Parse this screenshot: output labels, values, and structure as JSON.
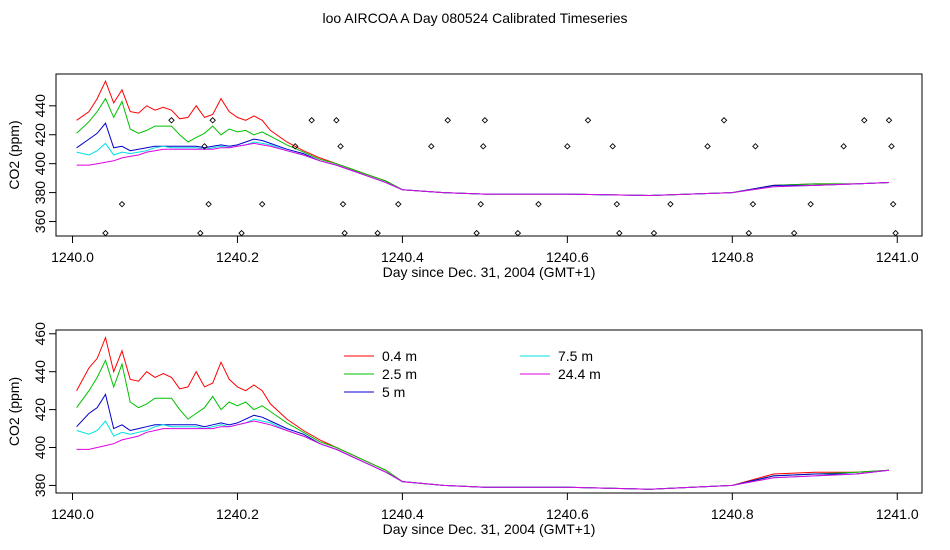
{
  "title": "loo AIRCOA A  Day 080524  Calibrated Timeseries",
  "chart_data": [
    {
      "type": "line",
      "xlabel": "Day since Dec. 31, 2004 (GMT+1)",
      "ylabel": "CO2 (ppm)",
      "xlim": [
        1239.98,
        1241.03
      ],
      "ylim": [
        350,
        462
      ],
      "xticks": [
        "1240.0",
        "1240.2",
        "1240.4",
        "1240.6",
        "1240.8",
        "1241.0"
      ],
      "yticks": [
        "360",
        "380",
        "400",
        "420",
        "440"
      ],
      "series": [
        {
          "color": "#ff0000",
          "x": [
            1240.005,
            1240.02,
            1240.03,
            1240.04,
            1240.05,
            1240.06,
            1240.07,
            1240.08,
            1240.09,
            1240.1,
            1240.11,
            1240.12,
            1240.13,
            1240.14,
            1240.15,
            1240.16,
            1240.17,
            1240.18,
            1240.19,
            1240.2,
            1240.21,
            1240.22,
            1240.23,
            1240.24,
            1240.26,
            1240.28,
            1240.3,
            1240.32,
            1240.34,
            1240.36,
            1240.38,
            1240.4,
            1240.45,
            1240.5,
            1240.6,
            1240.7,
            1240.8,
            1240.85,
            1240.9,
            1240.95,
            1240.99
          ],
          "y": [
            430,
            436,
            445,
            457,
            442,
            451,
            436,
            435,
            440,
            437,
            439,
            437,
            431,
            432,
            440,
            432,
            434,
            445,
            436,
            432,
            430,
            433,
            430,
            423,
            415,
            409,
            404,
            400,
            396,
            392,
            388,
            382,
            380,
            379,
            379,
            378,
            380,
            385,
            386,
            386,
            387
          ]
        },
        {
          "color": "#00c000",
          "x": [
            1240.005,
            1240.02,
            1240.03,
            1240.04,
            1240.05,
            1240.06,
            1240.07,
            1240.08,
            1240.09,
            1240.1,
            1240.11,
            1240.12,
            1240.13,
            1240.14,
            1240.15,
            1240.16,
            1240.17,
            1240.18,
            1240.19,
            1240.2,
            1240.21,
            1240.22,
            1240.23,
            1240.24,
            1240.26,
            1240.28,
            1240.3,
            1240.32,
            1240.34,
            1240.36,
            1240.38,
            1240.4,
            1240.45,
            1240.5,
            1240.6,
            1240.7,
            1240.8,
            1240.85,
            1240.9,
            1240.95,
            1240.99
          ],
          "y": [
            421,
            429,
            436,
            445,
            432,
            443,
            424,
            421,
            423,
            426,
            426,
            426,
            420,
            415,
            418,
            421,
            426,
            420,
            424,
            422,
            423,
            420,
            422,
            419,
            413,
            408,
            403,
            400,
            396,
            392,
            388,
            382,
            380,
            379,
            379,
            378,
            380,
            385,
            386,
            386,
            387
          ]
        },
        {
          "color": "#0000cc",
          "x": [
            1240.005,
            1240.02,
            1240.03,
            1240.04,
            1240.05,
            1240.06,
            1240.07,
            1240.08,
            1240.09,
            1240.1,
            1240.11,
            1240.12,
            1240.13,
            1240.14,
            1240.15,
            1240.16,
            1240.17,
            1240.18,
            1240.19,
            1240.2,
            1240.21,
            1240.22,
            1240.23,
            1240.24,
            1240.26,
            1240.28,
            1240.3,
            1240.32,
            1240.34,
            1240.36,
            1240.38,
            1240.4,
            1240.45,
            1240.5,
            1240.6,
            1240.7,
            1240.8,
            1240.85,
            1240.9,
            1240.95,
            1240.99
          ],
          "y": [
            411,
            417,
            421,
            428,
            411,
            412,
            409,
            410,
            411,
            412,
            412,
            412,
            412,
            412,
            412,
            411,
            412,
            413,
            412,
            413,
            415,
            417,
            416,
            414,
            410,
            407,
            402,
            399,
            395,
            391,
            387,
            382,
            380,
            379,
            379,
            378,
            380,
            385,
            385,
            386,
            387
          ]
        },
        {
          "color": "#00e0e0",
          "x": [
            1240.005,
            1240.02,
            1240.03,
            1240.04,
            1240.05,
            1240.06,
            1240.07,
            1240.08,
            1240.09,
            1240.1,
            1240.11,
            1240.12,
            1240.13,
            1240.14,
            1240.15,
            1240.16,
            1240.17,
            1240.18,
            1240.19,
            1240.2,
            1240.21,
            1240.22,
            1240.23,
            1240.24,
            1240.26,
            1240.28,
            1240.3,
            1240.32,
            1240.34,
            1240.36,
            1240.38,
            1240.4,
            1240.45,
            1240.5,
            1240.6,
            1240.7,
            1240.8,
            1240.85,
            1240.9,
            1240.95,
            1240.99
          ],
          "y": [
            408,
            406,
            409,
            414,
            406,
            408,
            407,
            408,
            409,
            411,
            412,
            411,
            411,
            411,
            411,
            410,
            411,
            412,
            411,
            412,
            413,
            415,
            414,
            413,
            409,
            406,
            402,
            399,
            395,
            391,
            387,
            382,
            380,
            379,
            379,
            378,
            380,
            384,
            385,
            386,
            387
          ]
        },
        {
          "color": "#e000e0",
          "x": [
            1240.005,
            1240.02,
            1240.03,
            1240.04,
            1240.05,
            1240.06,
            1240.07,
            1240.08,
            1240.09,
            1240.1,
            1240.11,
            1240.12,
            1240.13,
            1240.14,
            1240.15,
            1240.16,
            1240.17,
            1240.18,
            1240.19,
            1240.2,
            1240.21,
            1240.22,
            1240.23,
            1240.24,
            1240.26,
            1240.28,
            1240.3,
            1240.32,
            1240.34,
            1240.36,
            1240.38,
            1240.4,
            1240.45,
            1240.5,
            1240.6,
            1240.7,
            1240.8,
            1240.85,
            1240.9,
            1240.95,
            1240.99
          ],
          "y": [
            399,
            399,
            400,
            401,
            402,
            404,
            405,
            406,
            408,
            409,
            410,
            410,
            410,
            410,
            410,
            410,
            410,
            411,
            411,
            412,
            413,
            414,
            413,
            412,
            409,
            406,
            402,
            399,
            395,
            391,
            387,
            382,
            380,
            379,
            379,
            378,
            380,
            384,
            385,
            386,
            387
          ]
        }
      ],
      "points": {
        "x": [
          1240.04,
          1240.06,
          1240.12,
          1240.155,
          1240.16,
          1240.165,
          1240.17,
          1240.205,
          1240.23,
          1240.27,
          1240.29,
          1240.32,
          1240.325,
          1240.328,
          1240.33,
          1240.37,
          1240.395,
          1240.435,
          1240.455,
          1240.49,
          1240.495,
          1240.498,
          1240.5,
          1240.54,
          1240.565,
          1240.6,
          1240.625,
          1240.655,
          1240.66,
          1240.663,
          1240.705,
          1240.725,
          1240.77,
          1240.79,
          1240.82,
          1240.825,
          1240.828,
          1240.875,
          1240.895,
          1240.935,
          1240.96,
          1240.99,
          1240.993,
          1240.995,
          1240.998
        ],
        "y": [
          352,
          372,
          430,
          352,
          412,
          372,
          430,
          352,
          372,
          412,
          430,
          430,
          412,
          372,
          352,
          352,
          372,
          412,
          430,
          352,
          372,
          412,
          430,
          352,
          372,
          412,
          430,
          412,
          372,
          352,
          352,
          372,
          412,
          430,
          352,
          372,
          412,
          352,
          372,
          412,
          430,
          430,
          412,
          372,
          352
        ]
      }
    },
    {
      "type": "line",
      "xlabel": "Day since Dec. 31, 2004 (GMT+1)",
      "ylabel": "CO2 (ppm)",
      "xlim": [
        1239.98,
        1241.03
      ],
      "ylim": [
        376,
        462
      ],
      "xticks": [
        "1240.0",
        "1240.2",
        "1240.4",
        "1240.6",
        "1240.8",
        "1241.0"
      ],
      "yticks": [
        "380",
        "400",
        "420",
        "440",
        "460"
      ],
      "legend": [
        {
          "label": "0.4 m",
          "color": "#ff0000"
        },
        {
          "label": "2.5 m",
          "color": "#00c000"
        },
        {
          "label": "5 m",
          "color": "#0000cc"
        },
        {
          "label": "7.5 m",
          "color": "#00e0e0"
        },
        {
          "label": "24.4 m",
          "color": "#e000e0"
        }
      ],
      "series": [
        {
          "name": "0.4 m",
          "color": "#ff0000",
          "x": [
            1240.005,
            1240.02,
            1240.03,
            1240.04,
            1240.05,
            1240.06,
            1240.07,
            1240.08,
            1240.09,
            1240.1,
            1240.11,
            1240.12,
            1240.13,
            1240.14,
            1240.15,
            1240.16,
            1240.17,
            1240.18,
            1240.19,
            1240.2,
            1240.21,
            1240.22,
            1240.23,
            1240.24,
            1240.26,
            1240.28,
            1240.3,
            1240.32,
            1240.34,
            1240.36,
            1240.38,
            1240.4,
            1240.45,
            1240.5,
            1240.6,
            1240.7,
            1240.8,
            1240.85,
            1240.9,
            1240.95,
            1240.99
          ],
          "y": [
            430,
            442,
            447,
            458,
            440,
            451,
            436,
            435,
            440,
            437,
            439,
            437,
            431,
            432,
            440,
            432,
            434,
            445,
            436,
            432,
            430,
            433,
            430,
            423,
            415,
            409,
            404,
            400,
            396,
            392,
            388,
            382,
            380,
            379,
            379,
            378,
            380,
            386,
            387,
            387,
            388
          ]
        },
        {
          "name": "2.5 m",
          "color": "#00c000",
          "x": [
            1240.005,
            1240.02,
            1240.03,
            1240.04,
            1240.05,
            1240.06,
            1240.07,
            1240.08,
            1240.09,
            1240.1,
            1240.11,
            1240.12,
            1240.13,
            1240.14,
            1240.15,
            1240.16,
            1240.17,
            1240.18,
            1240.19,
            1240.2,
            1240.21,
            1240.22,
            1240.23,
            1240.24,
            1240.26,
            1240.28,
            1240.3,
            1240.32,
            1240.34,
            1240.36,
            1240.38,
            1240.4,
            1240.45,
            1240.5,
            1240.6,
            1240.7,
            1240.8,
            1240.85,
            1240.9,
            1240.95,
            1240.99
          ],
          "y": [
            421,
            430,
            437,
            446,
            432,
            444,
            424,
            421,
            423,
            426,
            426,
            426,
            420,
            415,
            418,
            421,
            427,
            420,
            424,
            422,
            424,
            420,
            422,
            419,
            413,
            408,
            403,
            400,
            396,
            392,
            388,
            382,
            380,
            379,
            379,
            378,
            380,
            385,
            386,
            387,
            388
          ]
        },
        {
          "name": "5 m",
          "color": "#0000cc",
          "x": [
            1240.005,
            1240.02,
            1240.03,
            1240.04,
            1240.05,
            1240.06,
            1240.07,
            1240.08,
            1240.09,
            1240.1,
            1240.11,
            1240.12,
            1240.13,
            1240.14,
            1240.15,
            1240.16,
            1240.17,
            1240.18,
            1240.19,
            1240.2,
            1240.21,
            1240.22,
            1240.23,
            1240.24,
            1240.26,
            1240.28,
            1240.3,
            1240.32,
            1240.34,
            1240.36,
            1240.38,
            1240.4,
            1240.45,
            1240.5,
            1240.6,
            1240.7,
            1240.8,
            1240.85,
            1240.9,
            1240.95,
            1240.99
          ],
          "y": [
            411,
            418,
            421,
            428,
            410,
            412,
            409,
            410,
            411,
            412,
            412,
            412,
            412,
            412,
            412,
            411,
            412,
            413,
            412,
            413,
            415,
            417,
            416,
            414,
            410,
            407,
            402,
            399,
            395,
            391,
            387,
            382,
            380,
            379,
            379,
            378,
            380,
            385,
            386,
            386,
            388
          ]
        },
        {
          "name": "7.5 m",
          "color": "#00e0e0",
          "x": [
            1240.005,
            1240.02,
            1240.03,
            1240.04,
            1240.05,
            1240.06,
            1240.07,
            1240.08,
            1240.09,
            1240.1,
            1240.11,
            1240.12,
            1240.13,
            1240.14,
            1240.15,
            1240.16,
            1240.17,
            1240.18,
            1240.19,
            1240.2,
            1240.21,
            1240.22,
            1240.23,
            1240.24,
            1240.26,
            1240.28,
            1240.3,
            1240.32,
            1240.34,
            1240.36,
            1240.38,
            1240.4,
            1240.45,
            1240.5,
            1240.6,
            1240.7,
            1240.8,
            1240.85,
            1240.9,
            1240.95,
            1240.99
          ],
          "y": [
            409,
            407,
            409,
            414,
            406,
            408,
            407,
            408,
            409,
            411,
            412,
            411,
            411,
            411,
            411,
            410,
            411,
            412,
            411,
            412,
            413,
            415,
            414,
            413,
            409,
            406,
            402,
            399,
            395,
            391,
            387,
            382,
            380,
            379,
            379,
            378,
            380,
            384,
            385,
            386,
            388
          ]
        },
        {
          "name": "24.4 m",
          "color": "#e000e0",
          "x": [
            1240.005,
            1240.02,
            1240.03,
            1240.04,
            1240.05,
            1240.06,
            1240.07,
            1240.08,
            1240.09,
            1240.1,
            1240.11,
            1240.12,
            1240.13,
            1240.14,
            1240.15,
            1240.16,
            1240.17,
            1240.18,
            1240.19,
            1240.2,
            1240.21,
            1240.22,
            1240.23,
            1240.24,
            1240.26,
            1240.28,
            1240.3,
            1240.32,
            1240.34,
            1240.36,
            1240.38,
            1240.4,
            1240.45,
            1240.5,
            1240.6,
            1240.7,
            1240.8,
            1240.85,
            1240.9,
            1240.95,
            1240.99
          ],
          "y": [
            399,
            399,
            400,
            401,
            402,
            404,
            405,
            406,
            408,
            409,
            410,
            410,
            410,
            410,
            410,
            410,
            410,
            411,
            411,
            412,
            413,
            414,
            413,
            412,
            409,
            406,
            402,
            399,
            395,
            391,
            387,
            382,
            380,
            379,
            379,
            378,
            380,
            384,
            385,
            386,
            388
          ]
        }
      ]
    }
  ]
}
